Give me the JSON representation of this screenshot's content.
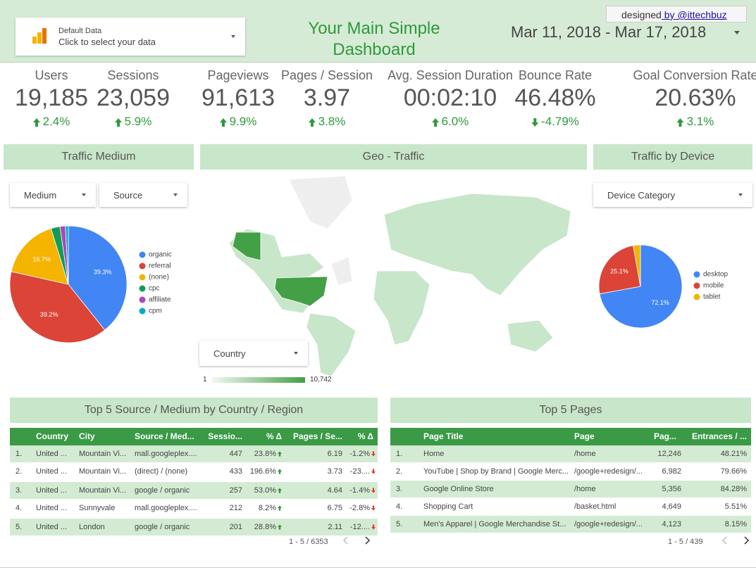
{
  "header": {
    "data_source_title": "Default Data",
    "data_source_subtitle": "Click to select your data",
    "title_line1": "Your Main Simple",
    "title_line2": "Dashboard",
    "date_range": "Mar 11, 2018 - Mar 17, 2018",
    "credit": "designed",
    "credit_link": " by @ittechbuz"
  },
  "scorecards": [
    {
      "label": "Users",
      "value": "19,185",
      "change": "2.4%"
    },
    {
      "label": "Sessions",
      "value": "23,059",
      "change": "5.9%"
    },
    {
      "label": "Pageviews",
      "value": "91,613",
      "change": "9.9%"
    },
    {
      "label": "Pages / Session",
      "value": "3.97",
      "change": "3.8%"
    },
    {
      "label": "Avg. Session Duration",
      "value": "00:02:10",
      "change": "6.0%"
    },
    {
      "label": "Bounce Rate",
      "value": "46.48%",
      "change": "-4.79%"
    },
    {
      "label": "Goal Conversion Rate",
      "value": "20.63%",
      "change": "3.1%"
    }
  ],
  "traffic_medium": {
    "title": "Traffic Medium",
    "filters": [
      "Medium",
      "Source"
    ],
    "pie": {
      "type": "pie",
      "categories": [
        "organic",
        "referral",
        "(none)",
        "cpc",
        "affiliate",
        "cpm"
      ],
      "values": [
        39.3,
        39.2,
        16.7,
        2.5,
        1.5,
        0.8
      ],
      "value_labels": [
        "39.3%",
        "39.2%",
        "16.7%",
        null,
        null,
        null
      ],
      "colors": [
        "#4285f4",
        "#db4437",
        "#f4b400",
        "#0f9d58",
        "#ab47bc",
        "#00acc1"
      ]
    }
  },
  "geo": {
    "title": "Geo - Traffic",
    "filter": "Country",
    "legend_min": "1",
    "legend_max": "10,742"
  },
  "device": {
    "title": "Traffic by Device",
    "filter": "Device Category",
    "pie": {
      "type": "pie",
      "categories": [
        "desktop",
        "mobile",
        "tablet"
      ],
      "values": [
        72.1,
        25.1,
        2.8
      ],
      "value_labels": [
        "72.1%",
        "25.1%",
        null
      ],
      "colors": [
        "#4285f4",
        "#db4437",
        "#f4b400"
      ]
    }
  },
  "source_table": {
    "title": "Top 5 Source / Medium by Country  / Region",
    "headers": [
      "Country",
      "City",
      "Source / Med...",
      "Sessio...",
      "% Δ",
      "Pages / Se...",
      "% Δ"
    ],
    "rows": [
      [
        "1.",
        "United ...",
        "Mountain Vi...",
        "mall.googleplex....",
        "447",
        "23.8%",
        "6.19",
        "-1.2%"
      ],
      [
        "2.",
        "United ...",
        "Mountain Vi...",
        "(direct) / (none)",
        "433",
        "196.6%",
        "3.73",
        "-23...."
      ],
      [
        "3.",
        "United ...",
        "Mountain Vi...",
        "google / organic",
        "257",
        "53.0%",
        "4.64",
        "-1.4%"
      ],
      [
        "4.",
        "United ...",
        "Sunnyvale",
        "mall.googleplex....",
        "212",
        "8.2%",
        "6.75",
        "-2.8%"
      ],
      [
        "5.",
        "United ...",
        "London",
        "google / organic",
        "201",
        "28.8%",
        "2.11",
        "-12...."
      ]
    ],
    "pagination": "1 - 5 / 6353"
  },
  "pages_table": {
    "title": "Top 5 Pages",
    "headers": [
      "Page Title",
      "Page",
      "Pag...",
      "Entrances / ..."
    ],
    "rows": [
      [
        "1.",
        "Home",
        "/home",
        "12,246",
        "48.21%"
      ],
      [
        "2.",
        "YouTube | Shop by Brand | Google Merc...",
        "/google+redesign/...",
        "6,982",
        "79.66%"
      ],
      [
        "3.",
        "Google Online Store",
        "/home",
        "5,356",
        "84.28%"
      ],
      [
        "4.",
        "Shopping Cart",
        "/basket.html",
        "4,649",
        "5.51%"
      ],
      [
        "5.",
        "Men's Apparel | Google Merchandise St...",
        "/google+redesign/...",
        "4,123",
        "8.15%"
      ]
    ],
    "pagination": "1 - 5 / 439"
  }
}
